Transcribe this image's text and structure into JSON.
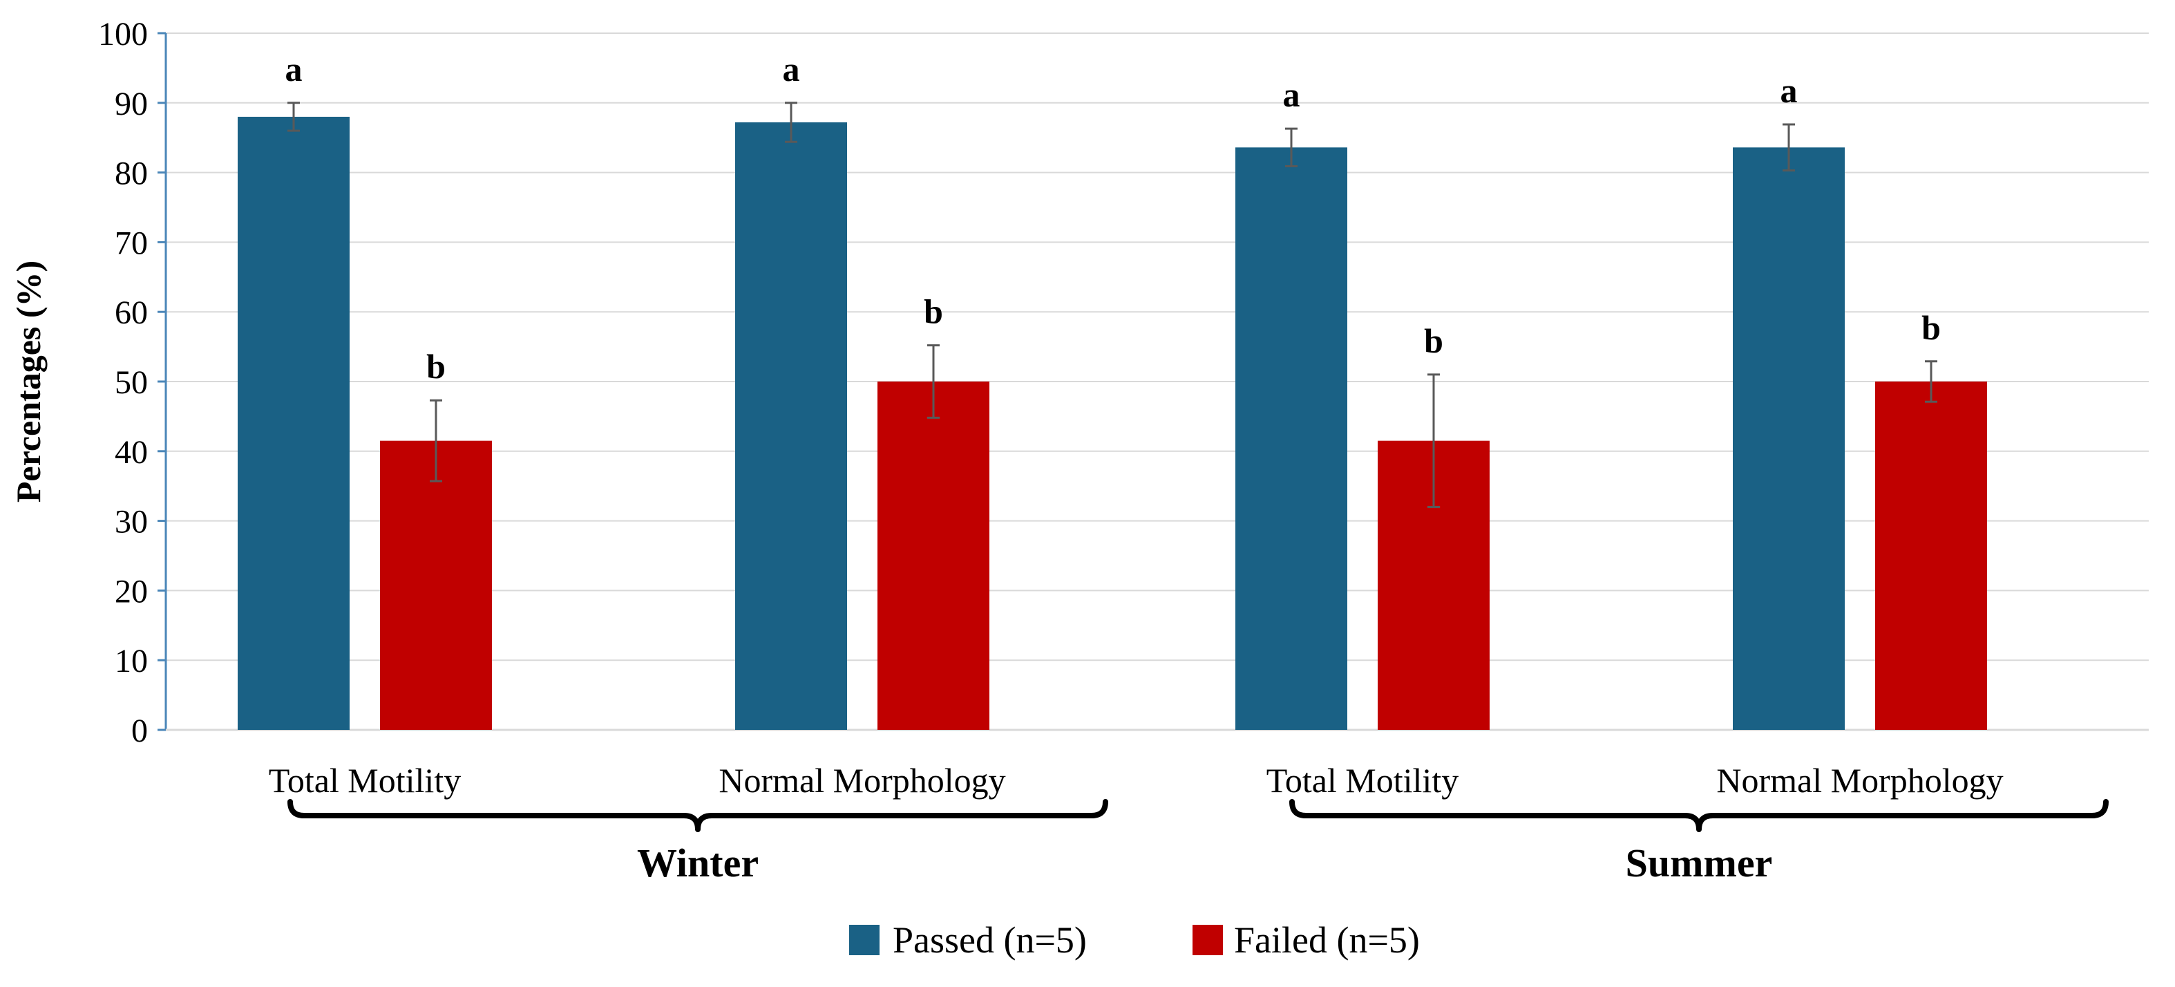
{
  "chart_data": {
    "type": "bar",
    "ylabel": "Percentages (%)",
    "ylim": [
      0,
      100
    ],
    "yticks": [
      "0",
      "10",
      "20",
      "30",
      "40",
      "50",
      "60",
      "70",
      "80",
      "90",
      "100"
    ],
    "grid": true,
    "groups": [
      {
        "name": "Winter",
        "categories": [
          {
            "label": "Total Motility",
            "bars": [
              {
                "series": "Passed (n=5)",
                "value": 88,
                "error": 2,
                "letter": "a"
              },
              {
                "series": "Failed (n=5)",
                "value": 41.5,
                "error": 5.8,
                "letter": "b"
              }
            ]
          },
          {
            "label": "Normal Morphology",
            "bars": [
              {
                "series": "Passed (n=5)",
                "value": 87.2,
                "error": 2.8,
                "letter": "a"
              },
              {
                "series": "Failed (n=5)",
                "value": 50,
                "error": 5.2,
                "letter": "b"
              }
            ]
          }
        ]
      },
      {
        "name": "Summer",
        "categories": [
          {
            "label": "Total Motility",
            "bars": [
              {
                "series": "Passed (n=5)",
                "value": 83.6,
                "error": 2.7,
                "letter": "a"
              },
              {
                "series": "Failed (n=5)",
                "value": 41.5,
                "error": 9.5,
                "letter": "b"
              }
            ]
          },
          {
            "label": "Normal Morphology",
            "bars": [
              {
                "series": "Passed (n=5)",
                "value": 83.6,
                "error": 3.3,
                "letter": "a"
              },
              {
                "series": "Failed (n=5)",
                "value": 50,
                "error": 2.9,
                "letter": "b"
              }
            ]
          }
        ]
      }
    ],
    "legend": {
      "placement": "bottom-center",
      "items": [
        {
          "name": "Passed (n=5)",
          "color": "#1a6185"
        },
        {
          "name": "Failed (n=5)",
          "color": "#c00000"
        }
      ]
    }
  }
}
